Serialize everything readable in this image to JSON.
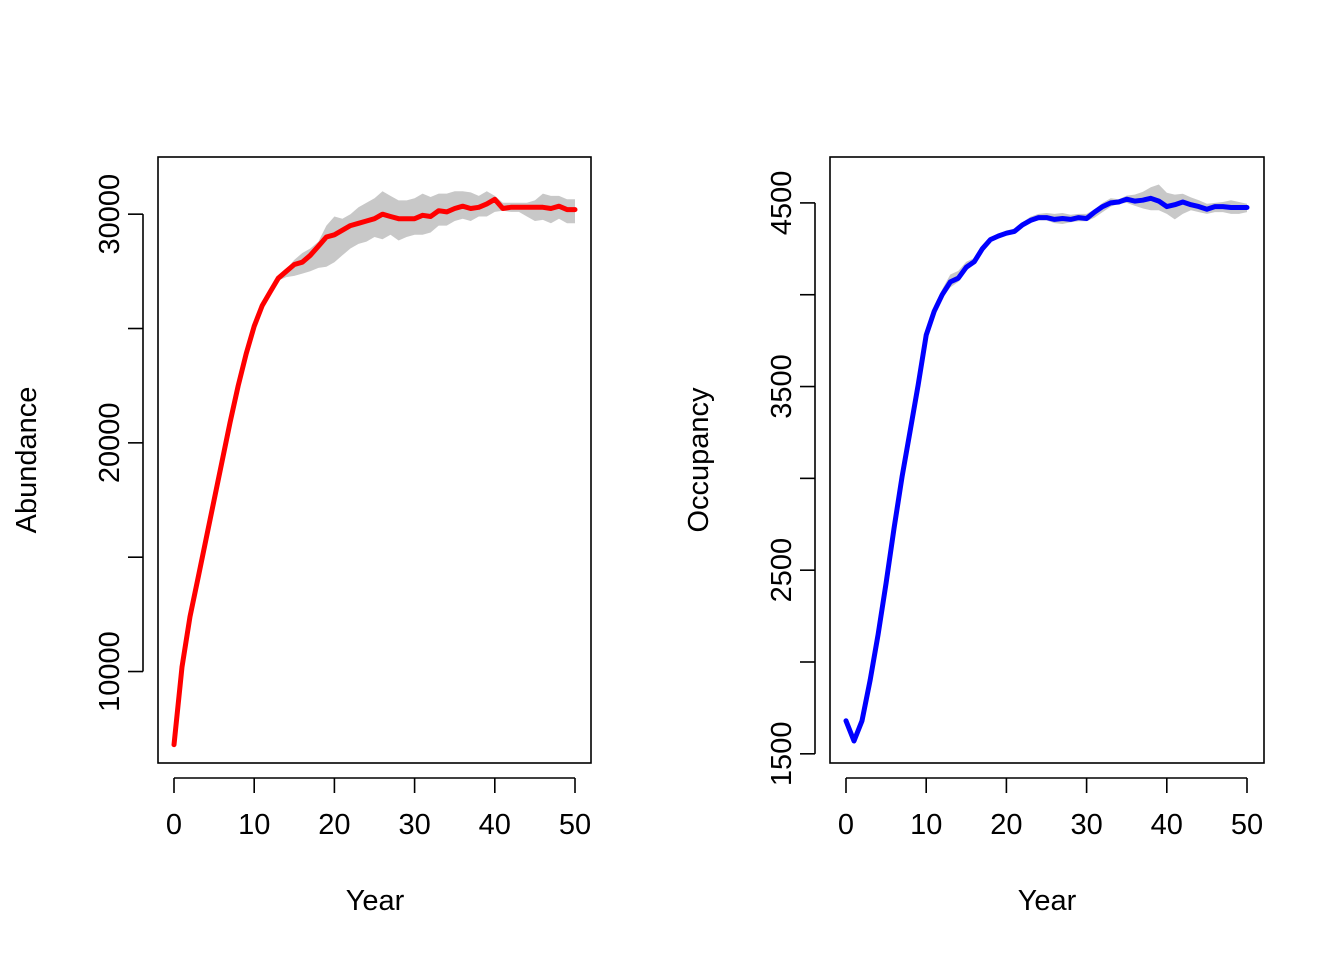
{
  "chart_data": [
    {
      "type": "line",
      "xlabel": "Year",
      "ylabel": "Abundance",
      "xlim": [
        0,
        50
      ],
      "ylim": [
        6000,
        32500
      ],
      "x_ticks": [
        0,
        10,
        20,
        30,
        40,
        50
      ],
      "y_ticks": [
        10000,
        15000,
        20000,
        25000,
        30000
      ],
      "y_tick_labels": [
        "10000",
        "",
        "20000",
        "",
        "30000"
      ],
      "colors": {
        "line": "#ff0000",
        "band": "#c8c8c8"
      },
      "series": [
        {
          "x": [
            0,
            1,
            2,
            3,
            4,
            5,
            6,
            7,
            8,
            9,
            10,
            11,
            12,
            13,
            14,
            15,
            16,
            17,
            18,
            19,
            20,
            21,
            22,
            23,
            24,
            25,
            26,
            27,
            28,
            29,
            30,
            31,
            32,
            33,
            34,
            35,
            36,
            37,
            38,
            39,
            40,
            41,
            42,
            43,
            44,
            45,
            46,
            47,
            48,
            49,
            50
          ],
          "values": [
            6800,
            10200,
            12400,
            14100,
            15800,
            17500,
            19200,
            20900,
            22500,
            23900,
            25100,
            26000,
            26600,
            27200,
            27500,
            27800,
            27900,
            28200,
            28600,
            29000,
            29100,
            29300,
            29500,
            29600,
            29700,
            29800,
            30000,
            29900,
            29800,
            29800,
            29800,
            29950,
            29900,
            30150,
            30100,
            30250,
            30350,
            30250,
            30300,
            30450,
            30650,
            30250,
            30300,
            30300,
            30300,
            30300,
            30300,
            30250,
            30350,
            30200,
            30200
          ],
          "lower": [
            6800,
            10200,
            12400,
            14100,
            15800,
            17500,
            19200,
            20900,
            22500,
            23900,
            25100,
            26000,
            26600,
            27100,
            27250,
            27300,
            27400,
            27500,
            27650,
            27700,
            27900,
            28200,
            28500,
            28700,
            28800,
            29000,
            28900,
            29100,
            28850,
            29000,
            29100,
            29100,
            29200,
            29500,
            29500,
            29700,
            29800,
            29700,
            29900,
            29900,
            30100,
            30150,
            30100,
            30100,
            29900,
            29700,
            29750,
            29600,
            29800,
            29600,
            29600
          ],
          "upper": [
            6800,
            10200,
            12400,
            14100,
            15800,
            17500,
            19200,
            20900,
            22500,
            23900,
            25100,
            26000,
            26600,
            27300,
            27600,
            28000,
            28300,
            28500,
            28800,
            29500,
            29900,
            29800,
            30000,
            30300,
            30500,
            30700,
            31000,
            30800,
            30600,
            30600,
            30700,
            30900,
            30750,
            30900,
            30900,
            31000,
            31000,
            30950,
            30800,
            31000,
            30800,
            30500,
            30500,
            30500,
            30500,
            30600,
            30900,
            30800,
            30800,
            30650,
            30650
          ]
        }
      ]
    },
    {
      "type": "line",
      "xlabel": "Year",
      "ylabel": "Occupancy",
      "xlim": [
        0,
        50
      ],
      "ylim": [
        1450,
        4750
      ],
      "x_ticks": [
        0,
        10,
        20,
        30,
        40,
        50
      ],
      "y_ticks": [
        1500,
        2000,
        2500,
        3000,
        3500,
        4000,
        4500
      ],
      "y_tick_labels": [
        "1500",
        "",
        "2500",
        "",
        "3500",
        "",
        "4500"
      ],
      "colors": {
        "line": "#0000ff",
        "band": "#c8c8c8"
      },
      "series": [
        {
          "x": [
            0,
            1,
            2,
            3,
            4,
            5,
            6,
            7,
            8,
            9,
            10,
            11,
            12,
            13,
            14,
            15,
            16,
            17,
            18,
            19,
            20,
            21,
            22,
            23,
            24,
            25,
            26,
            27,
            28,
            29,
            30,
            31,
            32,
            33,
            34,
            35,
            36,
            37,
            38,
            39,
            40,
            41,
            42,
            43,
            44,
            45,
            46,
            47,
            48,
            49,
            50
          ],
          "values": [
            1680,
            1570,
            1680,
            1900,
            2150,
            2430,
            2730,
            3010,
            3260,
            3510,
            3780,
            3910,
            4000,
            4070,
            4090,
            4150,
            4180,
            4250,
            4300,
            4320,
            4335,
            4345,
            4380,
            4405,
            4420,
            4420,
            4410,
            4415,
            4410,
            4420,
            4415,
            4450,
            4480,
            4500,
            4505,
            4520,
            4510,
            4515,
            4525,
            4510,
            4480,
            4490,
            4505,
            4490,
            4480,
            4465,
            4480,
            4480,
            4475,
            4475,
            4475
          ],
          "lower": [
            1680,
            1570,
            1680,
            1900,
            2150,
            2430,
            2730,
            3010,
            3260,
            3510,
            3780,
            3890,
            3980,
            4040,
            4070,
            4130,
            4170,
            4240,
            4290,
            4315,
            4330,
            4340,
            4370,
            4395,
            4405,
            4405,
            4390,
            4385,
            4395,
            4400,
            4400,
            4420,
            4450,
            4480,
            4495,
            4500,
            4485,
            4470,
            4460,
            4460,
            4440,
            4410,
            4440,
            4460,
            4450,
            4440,
            4450,
            4450,
            4440,
            4440,
            4450
          ],
          "upper": [
            1680,
            1570,
            1680,
            1900,
            2150,
            2430,
            2730,
            3010,
            3260,
            3510,
            3780,
            3940,
            4030,
            4110,
            4130,
            4180,
            4200,
            4270,
            4315,
            4330,
            4350,
            4360,
            4395,
            4425,
            4440,
            4445,
            4440,
            4445,
            4435,
            4440,
            4440,
            4465,
            4500,
            4525,
            4520,
            4540,
            4545,
            4560,
            4585,
            4600,
            4555,
            4545,
            4550,
            4530,
            4515,
            4495,
            4500,
            4505,
            4515,
            4505,
            4495
          ]
        }
      ]
    }
  ]
}
